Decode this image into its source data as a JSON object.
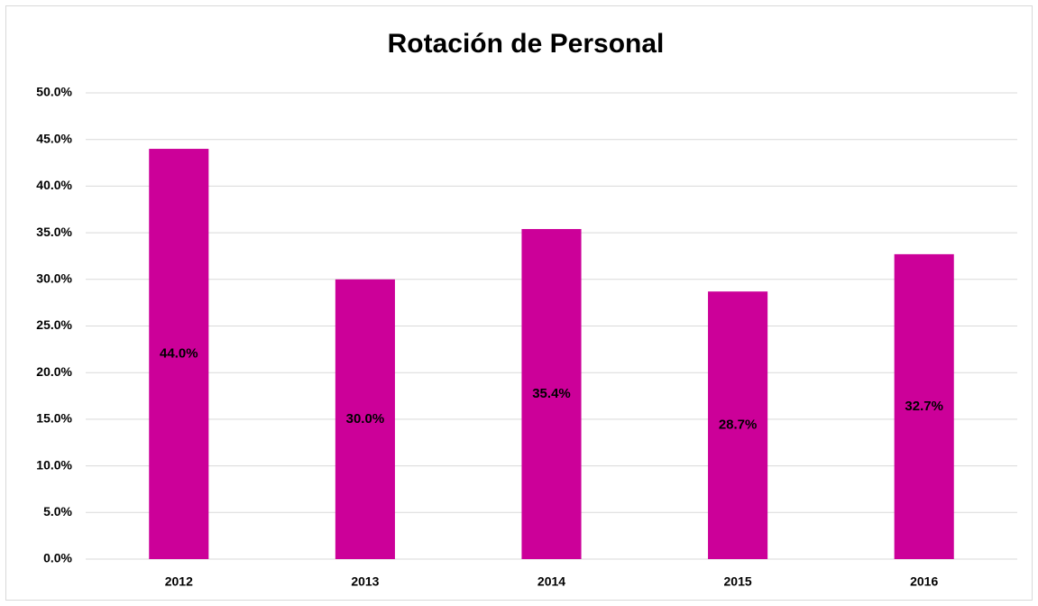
{
  "chart_data": {
    "type": "bar",
    "title": "Rotación de Personal",
    "categories": [
      "2012",
      "2013",
      "2014",
      "2015",
      "2016"
    ],
    "values": [
      44.0,
      30.0,
      35.4,
      28.7,
      32.7
    ],
    "value_labels": [
      "44.0%",
      "30.0%",
      "35.4%",
      "28.7%",
      "32.7%"
    ],
    "color": "#cc0099",
    "ylim": [
      0,
      50
    ],
    "yticks": [
      {
        "value": 0,
        "label": "0.0%"
      },
      {
        "value": 5,
        "label": "5.0%"
      },
      {
        "value": 10,
        "label": "10.0%"
      },
      {
        "value": 15,
        "label": "15.0%"
      },
      {
        "value": 20,
        "label": "20.0%"
      },
      {
        "value": 25,
        "label": "25.0%"
      },
      {
        "value": 30,
        "label": "30.0%"
      },
      {
        "value": 35,
        "label": "35.0%"
      },
      {
        "value": 40,
        "label": "40.0%"
      },
      {
        "value": 45,
        "label": "45.0%"
      },
      {
        "value": 50,
        "label": "50.0%"
      }
    ],
    "grid": true
  }
}
